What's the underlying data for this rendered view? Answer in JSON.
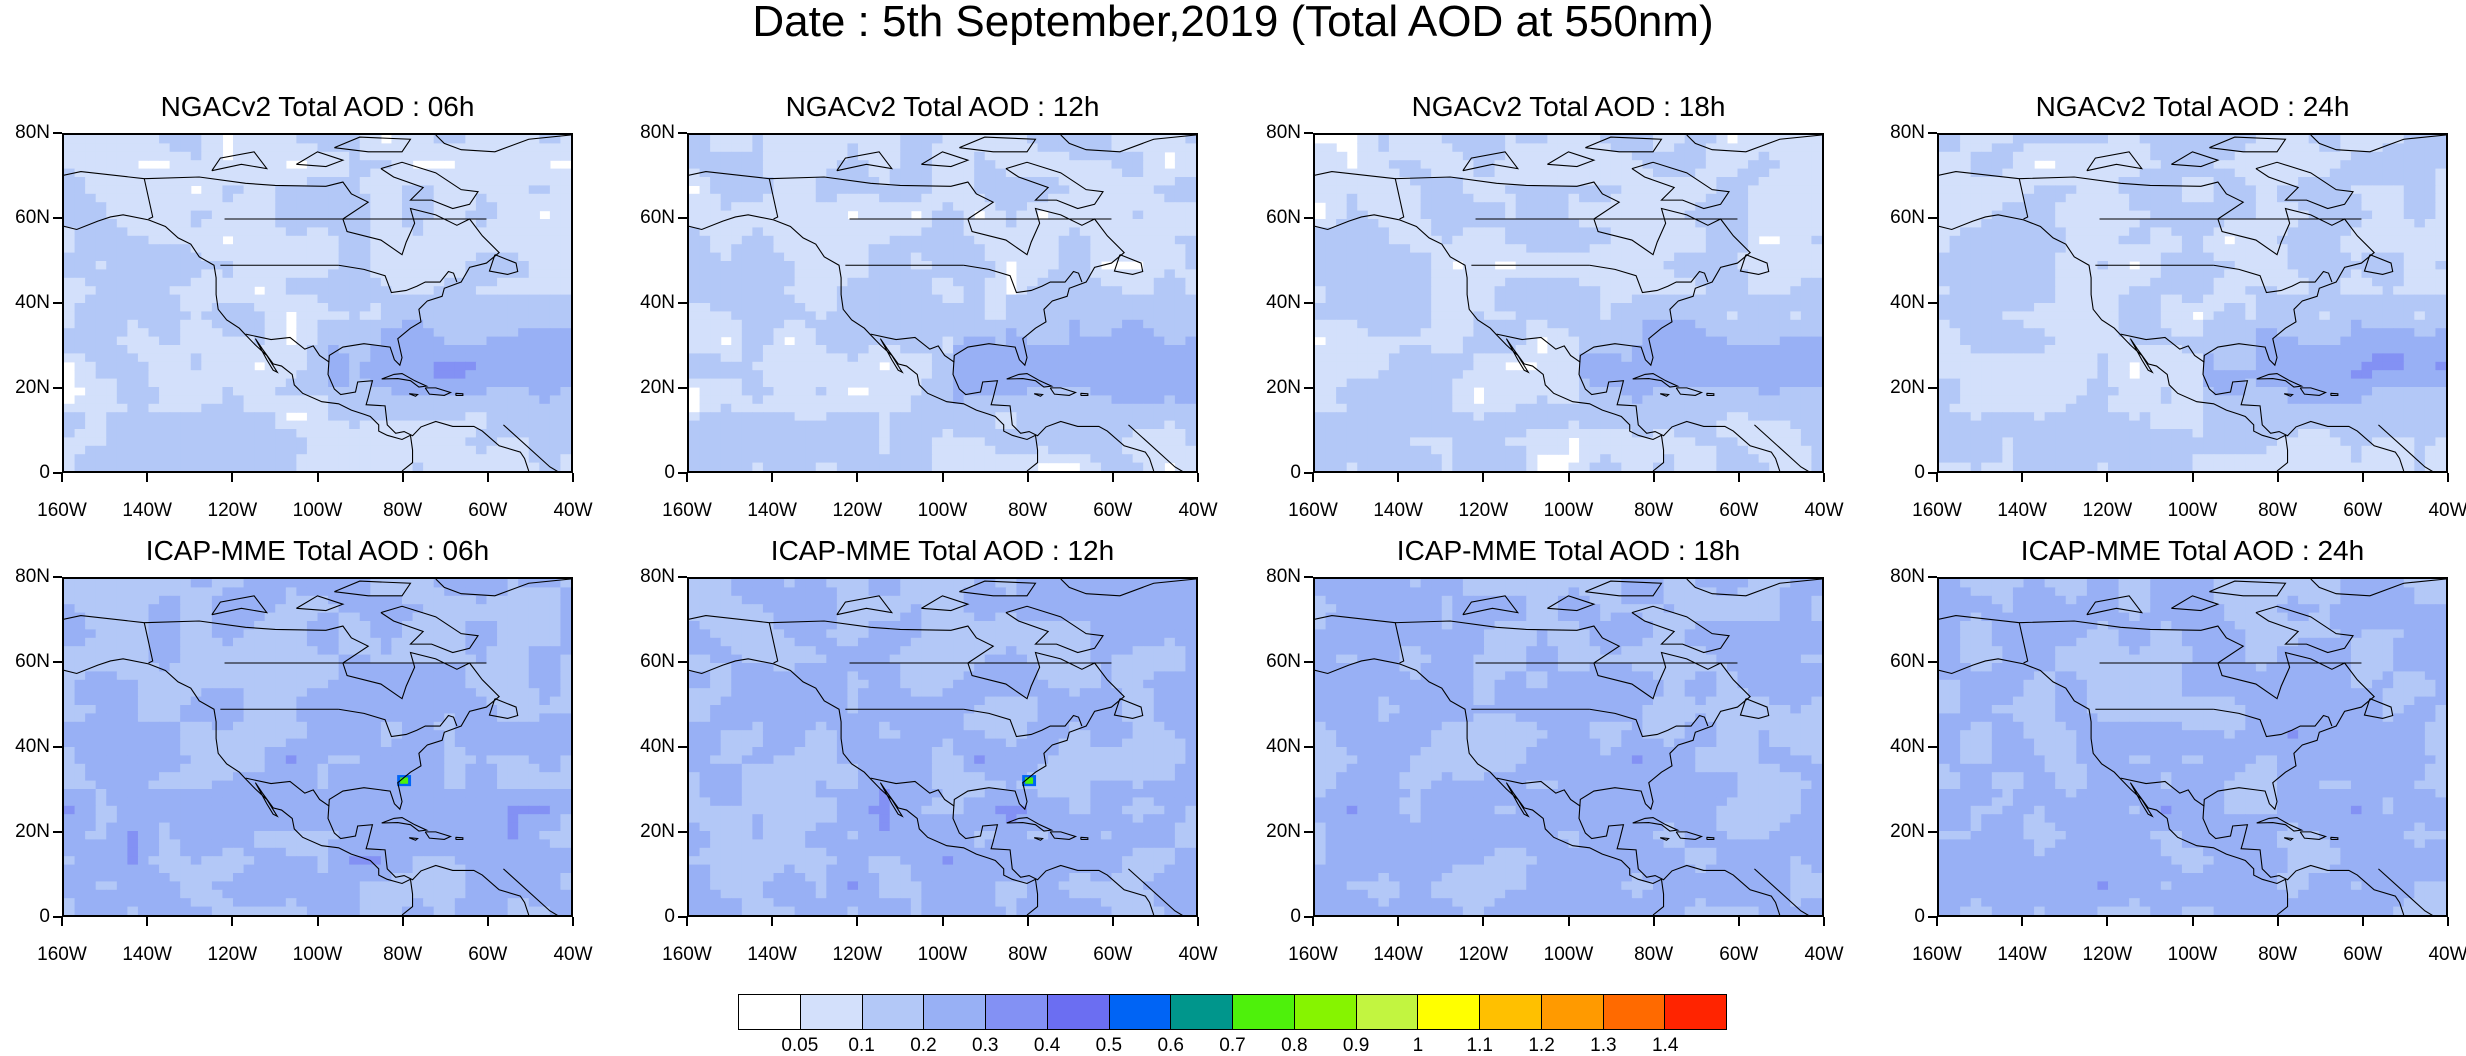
{
  "title": "Date : 5th September,2019 (Total AOD at 550nm)",
  "panels": [
    {
      "title": "NGACv2 Total AOD : 06h",
      "field": "low"
    },
    {
      "title": "NGACv2 Total AOD : 12h",
      "field": "low"
    },
    {
      "title": "NGACv2 Total AOD : 18h",
      "field": "low"
    },
    {
      "title": "NGACv2 Total AOD : 24h",
      "field": "low"
    },
    {
      "title": "ICAP-MME Total AOD : 06h",
      "field": "mid"
    },
    {
      "title": "ICAP-MME Total AOD : 12h",
      "field": "mid"
    },
    {
      "title": "ICAP-MME Total AOD : 18h",
      "field": "mid"
    },
    {
      "title": "ICAP-MME Total AOD : 24h",
      "field": "mid"
    }
  ],
  "lat_labels": [
    "80N",
    "60N",
    "40N",
    "20N",
    "0"
  ],
  "lon_labels": [
    "160W",
    "140W",
    "120W",
    "100W",
    "80W",
    "60W",
    "40W"
  ],
  "colorbar": {
    "labels": [
      "0.05",
      "0.1",
      "0.2",
      "0.3",
      "0.4",
      "0.5",
      "0.6",
      "0.7",
      "0.8",
      "0.9",
      "1",
      "1.1",
      "1.2",
      "1.3",
      "1.4"
    ],
    "colors": [
      "#ffffff",
      "#d3e0fb",
      "#b3c8f7",
      "#98b0f5",
      "#8391f4",
      "#6b6ef2",
      "#0064f5",
      "#00968c",
      "#4ef10b",
      "#86f400",
      "#c2f540",
      "#ffff00",
      "#ffc000",
      "#ff9a00",
      "#ff6a00",
      "#ff2400"
    ]
  }
}
